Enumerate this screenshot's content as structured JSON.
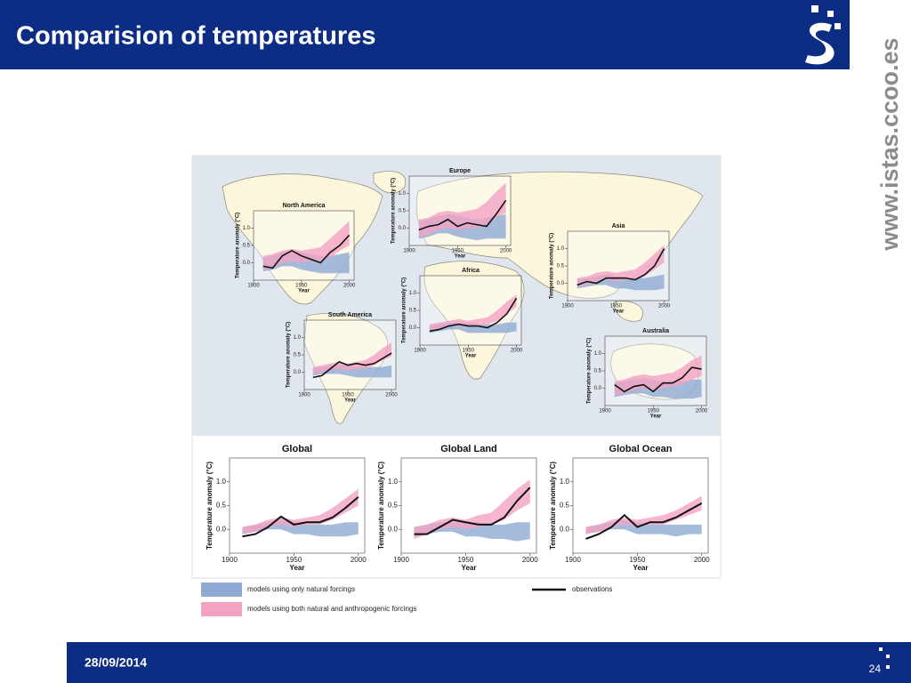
{
  "header": {
    "title": "Comparision of temperatures",
    "site": "www.istas.ccoo.es"
  },
  "footer": {
    "date": "28/09/2014",
    "page": "24"
  },
  "legend": [
    {
      "label": "models using only natural forcings",
      "color": "#8eaad3"
    },
    {
      "label": "models using both natural and anthropogenic forcings",
      "color": "#f2a3c3"
    },
    {
      "label": "observations",
      "color": "#111111"
    }
  ],
  "chart_data": [
    {
      "type": "line",
      "title": "Global",
      "ylabel": "Temperature anomaly (°C)",
      "xlabel": "Year",
      "x": [
        1910,
        1920,
        1930,
        1940,
        1950,
        1960,
        1970,
        1980,
        1990,
        2000
      ],
      "xlim": [
        1900,
        2005
      ],
      "xticks": [
        1900,
        1950,
        2000
      ],
      "ylim": [
        -0.5,
        1.5
      ],
      "yticks": [
        {
          "value": 0,
          "label": "0.0"
        },
        0.5,
        {
          "value": 1,
          "label": "1.0"
        }
      ],
      "observations": [
        -0.15,
        -0.1,
        0.05,
        0.27,
        0.1,
        0.15,
        0.15,
        0.25,
        0.45,
        0.68
      ],
      "natural": {
        "lower": [
          -0.1,
          -0.05,
          0,
          0,
          -0.1,
          -0.1,
          -0.15,
          -0.15,
          -0.15,
          -0.1
        ],
        "upper": [
          0.05,
          0.1,
          0.15,
          0.2,
          0.15,
          0.1,
          0.1,
          0.1,
          0.15,
          0.15
        ]
      },
      "both": {
        "lower": [
          -0.1,
          -0.05,
          0.05,
          0.1,
          0.05,
          0.1,
          0.1,
          0.2,
          0.35,
          0.5
        ],
        "upper": [
          0.05,
          0.1,
          0.2,
          0.25,
          0.2,
          0.25,
          0.3,
          0.45,
          0.65,
          0.85
        ]
      }
    },
    {
      "type": "line",
      "title": "Global Land",
      "ylabel": "Temperature anomaly (°C)",
      "xlabel": "Year",
      "x": [
        1910,
        1920,
        1930,
        1940,
        1950,
        1960,
        1970,
        1980,
        1990,
        2000
      ],
      "xlim": [
        1900,
        2005
      ],
      "xticks": [
        1900,
        1950,
        2000
      ],
      "ylim": [
        -0.5,
        1.5
      ],
      "yticks": [
        {
          "value": 0,
          "label": "0.0"
        },
        0.5,
        {
          "value": 1,
          "label": "1.0"
        }
      ],
      "observations": [
        -0.1,
        -0.1,
        0.05,
        0.2,
        0.15,
        0.1,
        0.1,
        0.25,
        0.6,
        0.88
      ],
      "natural": {
        "lower": [
          -0.15,
          -0.1,
          -0.05,
          -0.05,
          -0.15,
          -0.15,
          -0.2,
          -0.2,
          -0.25,
          -0.2
        ],
        "upper": [
          0.05,
          0.1,
          0.15,
          0.15,
          0.15,
          0.15,
          0.1,
          0.1,
          0.15,
          0.15
        ]
      },
      "both": {
        "lower": [
          -0.2,
          -0.1,
          0,
          0.05,
          0,
          0.05,
          0.1,
          0.2,
          0.4,
          0.55
        ],
        "upper": [
          0.05,
          0.1,
          0.2,
          0.25,
          0.2,
          0.3,
          0.35,
          0.6,
          0.85,
          1.05
        ]
      }
    },
    {
      "type": "line",
      "title": "Global Ocean",
      "ylabel": "Temperature anomaly (°C)",
      "xlabel": "Year",
      "x": [
        1910,
        1920,
        1930,
        1940,
        1950,
        1960,
        1970,
        1980,
        1990,
        2000
      ],
      "xlim": [
        1900,
        2005
      ],
      "xticks": [
        1900,
        1950,
        2000
      ],
      "ylim": [
        -0.5,
        1.5
      ],
      "yticks": [
        {
          "value": 0,
          "label": "0.0"
        },
        0.5,
        {
          "value": 1,
          "label": "1.0"
        }
      ],
      "observations": [
        -0.2,
        -0.1,
        0.05,
        0.3,
        0.05,
        0.15,
        0.15,
        0.25,
        0.4,
        0.55
      ],
      "natural": {
        "lower": [
          -0.1,
          -0.05,
          0,
          0,
          -0.1,
          -0.1,
          -0.1,
          -0.15,
          -0.1,
          -0.1
        ],
        "upper": [
          0.05,
          0.1,
          0.15,
          0.2,
          0.15,
          0.1,
          0.1,
          0.1,
          0.1,
          0.1
        ]
      },
      "both": {
        "lower": [
          -0.1,
          -0.05,
          0.05,
          0.1,
          0.05,
          0.1,
          0.1,
          0.2,
          0.3,
          0.4
        ],
        "upper": [
          0.05,
          0.1,
          0.2,
          0.25,
          0.2,
          0.25,
          0.3,
          0.4,
          0.55,
          0.7
        ]
      }
    },
    {
      "type": "line",
      "title": "North America",
      "ylabel": "Temperature anomaly (°C)",
      "xlabel": "Year",
      "x": [
        1910,
        1920,
        1930,
        1940,
        1950,
        1960,
        1970,
        1980,
        1990,
        2000
      ],
      "xlim": [
        1900,
        2005
      ],
      "xticks": [
        1900,
        1950,
        2000
      ],
      "ylim": [
        -0.5,
        1.5
      ],
      "yticks": [
        {
          "value": 0,
          "label": "0.0"
        },
        0.5,
        {
          "value": 1,
          "label": "1.0"
        }
      ],
      "observations": [
        -0.1,
        -0.15,
        0.2,
        0.35,
        0.2,
        0.1,
        0.0,
        0.3,
        0.5,
        0.8
      ],
      "natural": {
        "lower": [
          -0.25,
          -0.2,
          -0.1,
          -0.1,
          -0.2,
          -0.25,
          -0.3,
          -0.3,
          -0.3,
          -0.3
        ],
        "upper": [
          0.15,
          0.2,
          0.3,
          0.35,
          0.3,
          0.25,
          0.2,
          0.2,
          0.25,
          0.3
        ]
      },
      "both": {
        "lower": [
          -0.2,
          -0.15,
          0,
          0.05,
          0,
          0.05,
          0.05,
          0.15,
          0.35,
          0.5
        ],
        "upper": [
          0.2,
          0.25,
          0.35,
          0.4,
          0.35,
          0.4,
          0.45,
          0.7,
          0.95,
          1.2
        ]
      }
    },
    {
      "type": "line",
      "title": "Europe",
      "ylabel": "Temperature anomaly (°C)",
      "xlabel": "Year",
      "x": [
        1910,
        1920,
        1930,
        1940,
        1950,
        1960,
        1970,
        1980,
        1990,
        2000
      ],
      "xlim": [
        1900,
        2005
      ],
      "xticks": [
        1900,
        1950,
        2000
      ],
      "ylim": [
        -0.5,
        1.5
      ],
      "yticks": [
        {
          "value": 0,
          "label": "0.0"
        },
        0.5,
        {
          "value": 1,
          "label": "1.0"
        }
      ],
      "observations": [
        -0.05,
        0.05,
        0.1,
        0.25,
        0.05,
        0.15,
        0.1,
        0.05,
        0.4,
        0.8
      ],
      "natural": {
        "lower": [
          -0.3,
          -0.25,
          -0.15,
          -0.15,
          -0.25,
          -0.3,
          -0.35,
          -0.3,
          -0.3,
          -0.3
        ],
        "upper": [
          0.2,
          0.25,
          0.35,
          0.4,
          0.35,
          0.3,
          0.25,
          0.3,
          0.35,
          0.4
        ]
      },
      "both": {
        "lower": [
          -0.25,
          -0.2,
          -0.05,
          0,
          -0.05,
          0,
          0,
          0.1,
          0.3,
          0.45
        ],
        "upper": [
          0.25,
          0.3,
          0.45,
          0.5,
          0.45,
          0.5,
          0.55,
          0.75,
          1.05,
          1.3
        ]
      }
    },
    {
      "type": "line",
      "title": "Asia",
      "ylabel": "Temperature anomaly (°C)",
      "xlabel": "Year",
      "x": [
        1910,
        1920,
        1930,
        1940,
        1950,
        1960,
        1970,
        1980,
        1990,
        2000
      ],
      "xlim": [
        1900,
        2005
      ],
      "xticks": [
        1900,
        1950,
        2000
      ],
      "ylim": [
        -0.5,
        1.5
      ],
      "yticks": [
        {
          "value": 0,
          "label": "0.0"
        },
        0.5,
        {
          "value": 1,
          "label": "1.0"
        }
      ],
      "observations": [
        -0.05,
        0.05,
        0.0,
        0.15,
        0.15,
        0.15,
        0.1,
        0.25,
        0.5,
        1.0
      ],
      "natural": {
        "lower": [
          -0.15,
          -0.1,
          -0.05,
          -0.05,
          -0.15,
          -0.15,
          -0.2,
          -0.2,
          -0.2,
          -0.15
        ],
        "upper": [
          0.1,
          0.15,
          0.2,
          0.25,
          0.2,
          0.15,
          0.15,
          0.15,
          0.2,
          0.25
        ]
      },
      "both": {
        "lower": [
          -0.1,
          -0.05,
          0.05,
          0.1,
          0.05,
          0.1,
          0.1,
          0.2,
          0.4,
          0.6
        ],
        "upper": [
          0.15,
          0.2,
          0.3,
          0.35,
          0.3,
          0.35,
          0.4,
          0.6,
          0.85,
          1.1
        ]
      }
    },
    {
      "type": "line",
      "title": "Africa",
      "ylabel": "Temperature anomaly (°C)",
      "xlabel": "Year",
      "x": [
        1910,
        1920,
        1930,
        1940,
        1950,
        1960,
        1970,
        1980,
        1990,
        2000
      ],
      "xlim": [
        1900,
        2005
      ],
      "xticks": [
        1900,
        1950,
        2000
      ],
      "ylim": [
        -0.5,
        1.5
      ],
      "yticks": [
        {
          "value": 0,
          "label": "0.0"
        },
        0.5,
        {
          "value": 1,
          "label": "1.0"
        }
      ],
      "observations": [
        -0.1,
        -0.05,
        0.05,
        0.1,
        0.05,
        0.05,
        0.0,
        0.15,
        0.4,
        0.85
      ],
      "natural": {
        "lower": [
          -0.15,
          -0.1,
          -0.05,
          -0.05,
          -0.15,
          -0.15,
          -0.15,
          -0.15,
          -0.15,
          -0.1
        ],
        "upper": [
          0.05,
          0.1,
          0.15,
          0.15,
          0.15,
          0.1,
          0.1,
          0.1,
          0.15,
          0.15
        ]
      },
      "both": {
        "lower": [
          -0.1,
          -0.05,
          0.05,
          0.05,
          0.05,
          0.05,
          0.1,
          0.2,
          0.4,
          0.6
        ],
        "upper": [
          0.1,
          0.15,
          0.2,
          0.25,
          0.2,
          0.25,
          0.3,
          0.5,
          0.75,
          0.95
        ]
      }
    },
    {
      "type": "line",
      "title": "South America",
      "ylabel": "Temperature anomaly (°C)",
      "xlabel": "Year",
      "x": [
        1910,
        1920,
        1930,
        1940,
        1950,
        1960,
        1970,
        1980,
        1990,
        2000
      ],
      "xlim": [
        1900,
        2005
      ],
      "xticks": [
        1900,
        1950,
        2000
      ],
      "ylim": [
        -0.5,
        1.5
      ],
      "yticks": [
        {
          "value": 0,
          "label": "0.0"
        },
        0.5,
        {
          "value": 1,
          "label": "1.0"
        }
      ],
      "observations": [
        -0.15,
        -0.1,
        0.1,
        0.3,
        0.2,
        0.25,
        0.2,
        0.25,
        0.4,
        0.55
      ],
      "natural": {
        "lower": [
          -0.1,
          -0.05,
          -0.05,
          -0.05,
          -0.1,
          -0.15,
          -0.15,
          -0.15,
          -0.15,
          -0.15
        ],
        "upper": [
          0.1,
          0.15,
          0.2,
          0.2,
          0.2,
          0.15,
          0.15,
          0.15,
          0.15,
          0.2
        ]
      },
      "both": {
        "lower": [
          -0.05,
          0,
          0.05,
          0.1,
          0.05,
          0.1,
          0.1,
          0.2,
          0.35,
          0.45
        ],
        "upper": [
          0.15,
          0.2,
          0.25,
          0.3,
          0.25,
          0.3,
          0.35,
          0.5,
          0.7,
          0.85
        ]
      }
    },
    {
      "type": "line",
      "title": "Australia",
      "ylabel": "Temperature anomaly (°C)",
      "xlabel": "Year",
      "x": [
        1910,
        1920,
        1930,
        1940,
        1950,
        1960,
        1970,
        1980,
        1990,
        2000
      ],
      "xlim": [
        1900,
        2005
      ],
      "xticks": [
        1900,
        1950,
        2000
      ],
      "ylim": [
        -0.5,
        1.5
      ],
      "yticks": [
        {
          "value": 0,
          "label": "0.0"
        },
        0.5,
        {
          "value": 1,
          "label": "1.0"
        }
      ],
      "observations": [
        0.1,
        -0.1,
        0.05,
        0.1,
        -0.1,
        0.15,
        0.15,
        0.3,
        0.6,
        0.55
      ],
      "natural": {
        "lower": [
          -0.25,
          -0.2,
          -0.15,
          -0.15,
          -0.25,
          -0.25,
          -0.3,
          -0.3,
          -0.3,
          -0.25
        ],
        "upper": [
          0.15,
          0.2,
          0.25,
          0.3,
          0.25,
          0.2,
          0.2,
          0.2,
          0.25,
          0.25
        ]
      },
      "both": {
        "lower": [
          -0.2,
          -0.15,
          -0.05,
          0,
          -0.05,
          0,
          0.05,
          0.1,
          0.25,
          0.35
        ],
        "upper": [
          0.2,
          0.25,
          0.35,
          0.4,
          0.35,
          0.4,
          0.45,
          0.6,
          0.8,
          0.95
        ]
      }
    }
  ]
}
